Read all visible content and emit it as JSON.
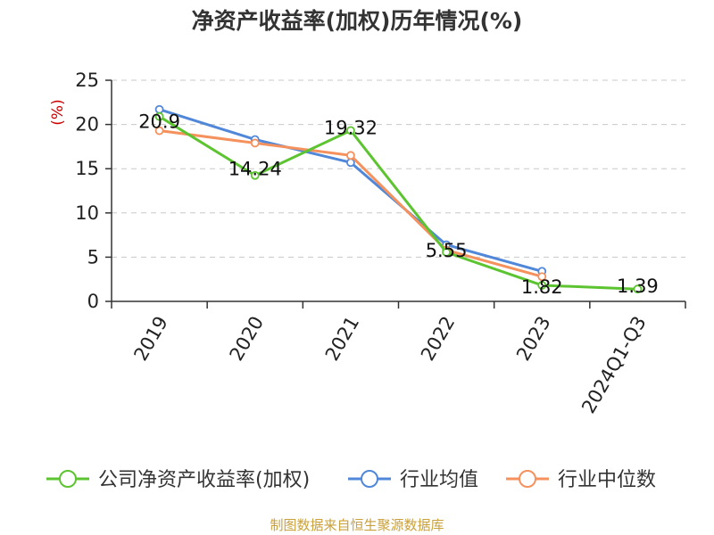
{
  "chart_data": {
    "type": "line",
    "title": "净资产收益率(加权)历年情况(%)",
    "ylabel": "(%)",
    "xlabel": "",
    "ylim": [
      0,
      25
    ],
    "yticks": [
      0,
      5,
      10,
      15,
      20,
      25
    ],
    "categories": [
      "2019",
      "2020",
      "2021",
      "2022",
      "2023",
      "2024Q1-Q3"
    ],
    "series": [
      {
        "name": "公司净资产收益率(加权)",
        "color": "#5cc430",
        "values": [
          20.9,
          14.24,
          19.32,
          5.55,
          1.82,
          1.39
        ],
        "labels": [
          "20.9",
          "14.24",
          "19.32",
          "5.55",
          "1.82",
          "1.39"
        ]
      },
      {
        "name": "行业均值",
        "color": "#5087d8",
        "values": [
          21.7,
          18.3,
          15.7,
          6.4,
          3.4,
          null
        ]
      },
      {
        "name": "行业中位数",
        "color": "#f5915d",
        "values": [
          19.3,
          17.9,
          16.5,
          5.8,
          2.8,
          null
        ]
      }
    ],
    "grid": true,
    "legend": "bottom",
    "source": "制图数据来自恒生聚源数据库"
  }
}
